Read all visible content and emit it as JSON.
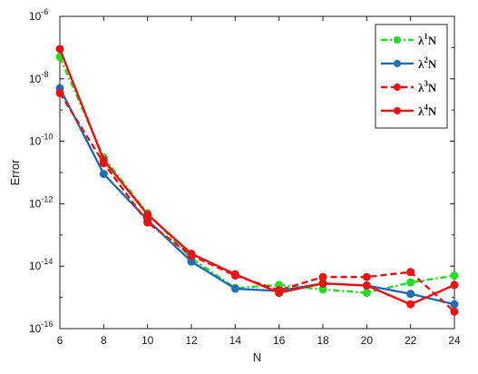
{
  "chart_data": {
    "type": "line",
    "xlabel": "N",
    "ylabel": "Error",
    "x": [
      6,
      8,
      10,
      12,
      14,
      16,
      18,
      20,
      22,
      24
    ],
    "xlim": [
      6,
      24
    ],
    "ylim": [
      1e-16,
      1e-06
    ],
    "yscale": "log",
    "xticks": [
      "6",
      "8",
      "10",
      "12",
      "14",
      "16",
      "18",
      "20",
      "22",
      "24"
    ],
    "yticks": [
      {
        "base": "10",
        "exp": "-16",
        "value": 1e-16
      },
      {
        "base": "10",
        "exp": "-14",
        "value": 1e-14
      },
      {
        "base": "10",
        "exp": "-12",
        "value": 1e-12
      },
      {
        "base": "10",
        "exp": "-10",
        "value": 1e-10
      },
      {
        "base": "10",
        "exp": "-8",
        "value": 1e-08
      },
      {
        "base": "10",
        "exp": "-6",
        "value": 1e-06
      }
    ],
    "legend_position": "top-right",
    "grid": false,
    "series": [
      {
        "name": "λ¹N",
        "lambda": "λ",
        "sup": "1",
        "suffix": "N",
        "color": "#22dd22",
        "dash": "dash-dot",
        "values": [
          5e-08,
          3e-11,
          5e-13,
          1.8e-14,
          2e-15,
          2.5e-15,
          1.8e-15,
          1.4e-15,
          3e-15,
          5e-15
        ]
      },
      {
        "name": "λ²N",
        "lambda": "λ",
        "sup": "2",
        "suffix": "N",
        "color": "#1f6fb8",
        "dash": "solid",
        "values": [
          5e-09,
          9e-12,
          3e-13,
          1.4e-14,
          1.9e-15,
          1.6e-15,
          2.8e-15,
          2.4e-15,
          1.3e-15,
          6e-16
        ]
      },
      {
        "name": "λ³N",
        "lambda": "λ",
        "sup": "3",
        "suffix": "N",
        "color": "#ee1111",
        "dash": "dashed",
        "values": [
          3.5e-09,
          2e-11,
          2.5e-13,
          2.2e-14,
          5e-15,
          1.7e-15,
          4.5e-15,
          4.5e-15,
          6.5e-15,
          3.5e-16
        ]
      },
      {
        "name": "λ⁴N",
        "lambda": "λ",
        "sup": "4",
        "suffix": "N",
        "color": "#ee1111",
        "dash": "solid",
        "values": [
          9e-08,
          2.5e-11,
          4.5e-13,
          2.5e-14,
          5.5e-15,
          1.4e-15,
          2.8e-15,
          2.4e-15,
          6e-16,
          2.5e-15
        ]
      }
    ]
  }
}
